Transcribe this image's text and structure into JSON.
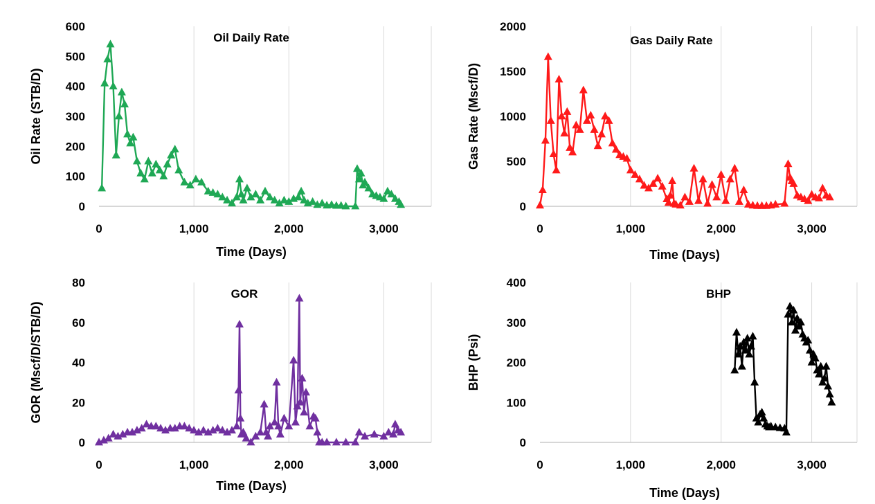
{
  "chart_data": [
    {
      "type": "line",
      "title": "Oil Daily Rate",
      "xlabel": "Time (Days)",
      "ylabel": "Oil Rate (STB/D)",
      "xlim": [
        0,
        3500
      ],
      "ylim": [
        0,
        600
      ],
      "x_ticks": [
        0,
        1000,
        2000,
        3000
      ],
      "x_tick_labels": [
        "0",
        "1,000",
        "2,000",
        "3,000"
      ],
      "y_ticks": [
        0,
        100,
        200,
        300,
        400,
        500,
        600
      ],
      "y_tick_labels": [
        "0",
        "100",
        "200",
        "300",
        "400",
        "500",
        "600"
      ],
      "grid": "vertical",
      "color": "#1fa855",
      "series": [
        {
          "marker": "triangle",
          "x": [
            30,
            60,
            90,
            120,
            150,
            180,
            210,
            240,
            270,
            300,
            330,
            360,
            400,
            440,
            480,
            520,
            560,
            600,
            640,
            680,
            720,
            760,
            800,
            840,
            900,
            960,
            1020,
            1080,
            1150,
            1200,
            1250,
            1300,
            1350,
            1400,
            1450,
            1480,
            1500,
            1520,
            1560,
            1600,
            1650,
            1700,
            1750,
            1800,
            1850,
            1900,
            1950,
            2000,
            2050,
            2100,
            2130,
            2160,
            2200,
            2250,
            2300,
            2350,
            2400,
            2450,
            2500,
            2550,
            2600,
            2700,
            2720,
            2740,
            2760,
            2780,
            2800,
            2840,
            2880,
            2920,
            2960,
            3000,
            3040,
            3080,
            3120,
            3160,
            3180
          ],
          "y": [
            60,
            410,
            490,
            540,
            400,
            170,
            300,
            380,
            340,
            240,
            210,
            230,
            150,
            110,
            90,
            150,
            110,
            140,
            120,
            100,
            140,
            170,
            190,
            120,
            80,
            70,
            90,
            80,
            50,
            45,
            40,
            30,
            20,
            10,
            30,
            90,
            40,
            20,
            60,
            30,
            40,
            20,
            50,
            30,
            20,
            10,
            20,
            15,
            25,
            30,
            50,
            20,
            10,
            15,
            5,
            10,
            3,
            5,
            2,
            2,
            0,
            0,
            125,
            90,
            110,
            70,
            80,
            60,
            40,
            35,
            30,
            25,
            50,
            40,
            25,
            15,
            5
          ]
        }
      ]
    },
    {
      "type": "line",
      "title": "Gas Daily Rate",
      "xlabel": "Time (Days)",
      "ylabel": "Gas Rate (Mscf/D)",
      "xlim": [
        0,
        3500
      ],
      "ylim": [
        0,
        2000
      ],
      "x_ticks": [
        0,
        1000,
        2000,
        3000
      ],
      "x_tick_labels": [
        "0",
        "1,000",
        "2,000",
        "3,000"
      ],
      "y_ticks": [
        0,
        500,
        1000,
        1500,
        2000
      ],
      "y_tick_labels": [
        "0",
        "500",
        "1000",
        "1500",
        "2000"
      ],
      "grid": "vertical",
      "color": "#ff1a1a",
      "series": [
        {
          "marker": "triangle",
          "x": [
            0,
            30,
            60,
            90,
            120,
            150,
            180,
            210,
            240,
            270,
            300,
            330,
            360,
            400,
            440,
            480,
            520,
            560,
            600,
            640,
            680,
            720,
            760,
            800,
            840,
            880,
            920,
            960,
            1000,
            1050,
            1100,
            1150,
            1200,
            1250,
            1300,
            1350,
            1400,
            1420,
            1440,
            1460,
            1480,
            1500,
            1550,
            1600,
            1650,
            1700,
            1750,
            1800,
            1850,
            1900,
            1950,
            2000,
            2050,
            2100,
            2150,
            2200,
            2250,
            2300,
            2350,
            2400,
            2450,
            2500,
            2550,
            2600,
            2700,
            2740,
            2760,
            2780,
            2800,
            2840,
            2880,
            2920,
            2960,
            3000,
            3040,
            3080,
            3120,
            3160,
            3200
          ],
          "y": [
            10,
            180,
            730,
            1660,
            950,
            580,
            400,
            1410,
            1000,
            810,
            1050,
            650,
            600,
            900,
            850,
            1290,
            950,
            1010,
            850,
            670,
            800,
            1000,
            950,
            700,
            630,
            570,
            550,
            530,
            400,
            350,
            300,
            230,
            200,
            250,
            310,
            220,
            80,
            40,
            120,
            280,
            30,
            20,
            10,
            100,
            50,
            420,
            60,
            300,
            30,
            240,
            100,
            350,
            60,
            300,
            420,
            50,
            180,
            20,
            10,
            5,
            5,
            5,
            10,
            20,
            30,
            470,
            320,
            280,
            250,
            120,
            100,
            80,
            60,
            130,
            100,
            90,
            200,
            120,
            100
          ]
        }
      ]
    },
    {
      "type": "line",
      "title": "GOR",
      "xlabel": "Time (Days)",
      "ylabel": "GOR (Mscf/D/STB/D)",
      "xlim": [
        0,
        3500
      ],
      "ylim": [
        0,
        80
      ],
      "x_ticks": [
        0,
        1000,
        2000,
        3000
      ],
      "x_tick_labels": [
        "0",
        "1,000",
        "2,000",
        "3,000"
      ],
      "y_ticks": [
        0,
        20,
        40,
        60,
        80
      ],
      "y_tick_labels": [
        "0",
        "20",
        "40",
        "60",
        "80"
      ],
      "grid": "vertical",
      "color": "#7030a0",
      "series": [
        {
          "marker": "triangle",
          "x": [
            0,
            50,
            100,
            150,
            200,
            250,
            300,
            350,
            400,
            450,
            500,
            550,
            600,
            650,
            700,
            750,
            800,
            850,
            900,
            950,
            1000,
            1050,
            1100,
            1150,
            1200,
            1250,
            1300,
            1350,
            1400,
            1450,
            1470,
            1480,
            1490,
            1500,
            1520,
            1550,
            1600,
            1650,
            1700,
            1740,
            1760,
            1780,
            1800,
            1850,
            1870,
            1890,
            1910,
            1950,
            2000,
            2050,
            2070,
            2090,
            2110,
            2120,
            2140,
            2160,
            2180,
            2220,
            2260,
            2280,
            2300,
            2320,
            2350,
            2400,
            2500,
            2600,
            2700,
            2740,
            2800,
            2900,
            3000,
            3050,
            3100,
            3120,
            3150,
            3180
          ],
          "y": [
            0,
            1,
            2,
            4,
            3,
            4,
            5,
            5,
            6,
            7,
            9,
            8,
            8,
            7,
            6,
            7,
            7,
            8,
            8,
            7,
            6,
            5,
            6,
            5,
            6,
            7,
            6,
            5,
            6,
            8,
            26,
            59,
            12,
            4,
            5,
            2,
            0,
            3,
            5,
            19,
            5,
            3,
            8,
            10,
            30,
            8,
            4,
            12,
            8,
            41,
            10,
            18,
            72,
            20,
            32,
            15,
            25,
            8,
            13,
            12,
            5,
            0,
            0,
            0,
            0,
            0,
            0,
            5,
            3,
            4,
            3,
            5,
            4,
            9,
            6,
            5
          ]
        }
      ]
    },
    {
      "type": "line",
      "title": "BHP",
      "xlabel": "Time (Days)",
      "ylabel": "BHP (Psi)",
      "xlim": [
        0,
        3500
      ],
      "ylim": [
        0,
        400
      ],
      "x_ticks": [
        0,
        1000,
        2000,
        3000
      ],
      "x_tick_labels": [
        "0",
        "1,000",
        "2,000",
        "3,000"
      ],
      "y_ticks": [
        0,
        100,
        200,
        300,
        400
      ],
      "y_tick_labels": [
        "0",
        "100",
        "200",
        "300",
        "400"
      ],
      "grid": "vertical",
      "color": "#000000",
      "series": [
        {
          "marker": "triangle",
          "x": [
            2150,
            2170,
            2190,
            2210,
            2230,
            2250,
            2270,
            2290,
            2310,
            2330,
            2350,
            2370,
            2390,
            2410,
            2430,
            2450,
            2470,
            2490,
            2510,
            2530,
            2550,
            2600,
            2650,
            2700,
            2720,
            2740,
            2760,
            2780,
            2800,
            2820,
            2840,
            2860,
            2880,
            2900,
            2920,
            2940,
            2960,
            2980,
            3000,
            3020,
            3040,
            3060,
            3080,
            3100,
            3120,
            3140,
            3160,
            3180,
            3200,
            3220
          ],
          "y": [
            180,
            275,
            220,
            240,
            190,
            250,
            230,
            260,
            220,
            240,
            265,
            150,
            60,
            50,
            70,
            75,
            60,
            45,
            40,
            38,
            40,
            38,
            36,
            35,
            25,
            320,
            340,
            300,
            330,
            280,
            310,
            290,
            300,
            270,
            260,
            250,
            255,
            230,
            200,
            220,
            210,
            180,
            170,
            190,
            150,
            160,
            190,
            140,
            120,
            100
          ]
        }
      ]
    }
  ]
}
